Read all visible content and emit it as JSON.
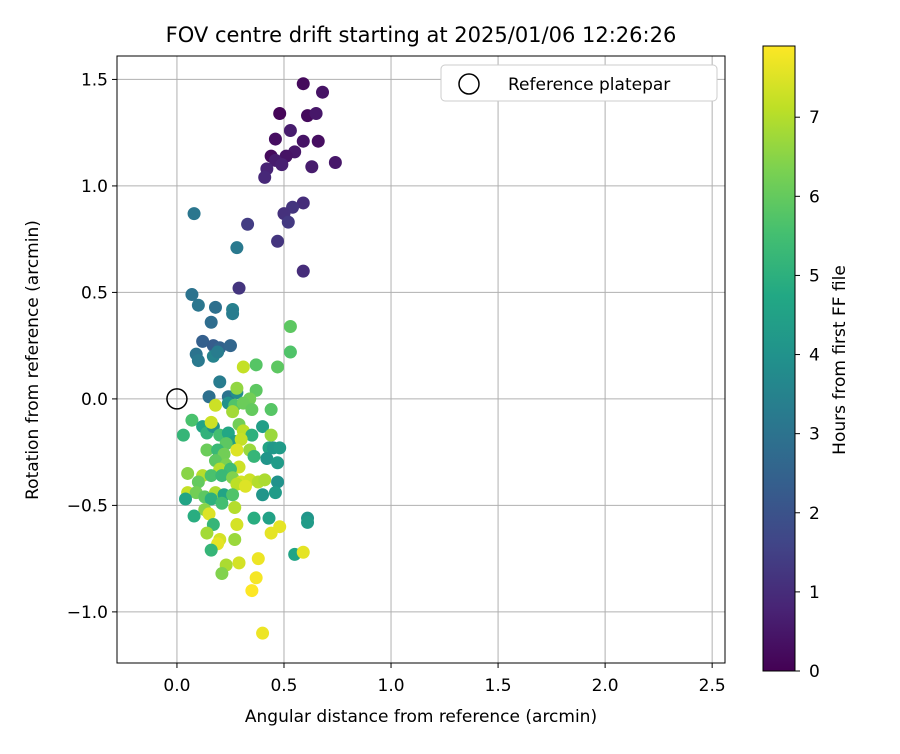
{
  "chart_data": {
    "type": "scatter",
    "title": "FOV centre drift starting at 2025/01/06 12:26:26",
    "xlabel": "Angular distance from reference (arcmin)",
    "ylabel": "Rotation from reference (arcmin)",
    "xlim": [
      -0.28,
      2.56
    ],
    "ylim": [
      -1.24,
      1.61
    ],
    "xticks": [
      0.0,
      0.5,
      1.0,
      1.5,
      2.0,
      2.5
    ],
    "xtick_labels": [
      "0.0",
      "0.5",
      "1.0",
      "1.5",
      "2.0",
      "2.5"
    ],
    "yticks": [
      -1.0,
      -0.5,
      0.0,
      0.5,
      1.0,
      1.5
    ],
    "ytick_labels": [
      "−1.0",
      "−0.5",
      "0.0",
      "0.5",
      "1.0",
      "1.5"
    ],
    "grid": true,
    "legend": {
      "position": "top-right",
      "entries": [
        "Reference platepar"
      ]
    },
    "reference_point": {
      "x": 0.0,
      "y": 0.0,
      "marker": "open-circle"
    },
    "colorbar": {
      "label": "Hours from first FF file",
      "colormap": "viridis",
      "range": [
        0,
        7.9
      ],
      "ticks": [
        0,
        1,
        2,
        3,
        4,
        5,
        6,
        7
      ],
      "tick_labels": [
        "0",
        "1",
        "2",
        "3",
        "4",
        "5",
        "6",
        "7"
      ]
    },
    "points": [
      {
        "x": 0.59,
        "y": 1.48,
        "h": 0.2
      },
      {
        "x": 0.68,
        "y": 1.44,
        "h": 0.4
      },
      {
        "x": 0.48,
        "y": 1.34,
        "h": 0.1
      },
      {
        "x": 0.61,
        "y": 1.33,
        "h": 0.2
      },
      {
        "x": 0.65,
        "y": 1.34,
        "h": 0.5
      },
      {
        "x": 0.53,
        "y": 1.26,
        "h": 0.6
      },
      {
        "x": 0.46,
        "y": 1.22,
        "h": 0.3
      },
      {
        "x": 0.59,
        "y": 1.21,
        "h": 0.4
      },
      {
        "x": 0.66,
        "y": 1.21,
        "h": 0.3
      },
      {
        "x": 0.55,
        "y": 1.16,
        "h": 0.5
      },
      {
        "x": 0.51,
        "y": 1.14,
        "h": 0.4
      },
      {
        "x": 0.44,
        "y": 1.14,
        "h": 0.2
      },
      {
        "x": 0.46,
        "y": 1.12,
        "h": 0.6
      },
      {
        "x": 0.49,
        "y": 1.1,
        "h": 0.7
      },
      {
        "x": 0.63,
        "y": 1.09,
        "h": 0.6
      },
      {
        "x": 0.74,
        "y": 1.11,
        "h": 0.5
      },
      {
        "x": 0.42,
        "y": 1.08,
        "h": 0.8
      },
      {
        "x": 0.41,
        "y": 1.04,
        "h": 0.9
      },
      {
        "x": 0.59,
        "y": 0.92,
        "h": 1.0
      },
      {
        "x": 0.54,
        "y": 0.9,
        "h": 1.2
      },
      {
        "x": 0.5,
        "y": 0.87,
        "h": 1.1
      },
      {
        "x": 0.52,
        "y": 0.83,
        "h": 1.3
      },
      {
        "x": 0.33,
        "y": 0.82,
        "h": 1.4
      },
      {
        "x": 0.47,
        "y": 0.74,
        "h": 1.2
      },
      {
        "x": 0.59,
        "y": 0.6,
        "h": 1.0
      },
      {
        "x": 0.29,
        "y": 0.52,
        "h": 1.2
      },
      {
        "x": 0.08,
        "y": 0.87,
        "h": 3.1
      },
      {
        "x": 0.28,
        "y": 0.71,
        "h": 3.2
      },
      {
        "x": 0.07,
        "y": 0.49,
        "h": 3.0
      },
      {
        "x": 0.1,
        "y": 0.44,
        "h": 3.1
      },
      {
        "x": 0.18,
        "y": 0.43,
        "h": 2.9
      },
      {
        "x": 0.26,
        "y": 0.42,
        "h": 3.4
      },
      {
        "x": 0.26,
        "y": 0.4,
        "h": 3.3
      },
      {
        "x": 0.16,
        "y": 0.36,
        "h": 2.8
      },
      {
        "x": 0.12,
        "y": 0.27,
        "h": 2.4
      },
      {
        "x": 0.17,
        "y": 0.25,
        "h": 2.3
      },
      {
        "x": 0.2,
        "y": 0.24,
        "h": 2.5
      },
      {
        "x": 0.25,
        "y": 0.25,
        "h": 2.6
      },
      {
        "x": 0.09,
        "y": 0.21,
        "h": 3.0
      },
      {
        "x": 0.1,
        "y": 0.18,
        "h": 3.2
      },
      {
        "x": 0.17,
        "y": 0.2,
        "h": 3.5
      },
      {
        "x": 0.19,
        "y": 0.22,
        "h": 3.3
      },
      {
        "x": 0.2,
        "y": 0.08,
        "h": 3.3
      },
      {
        "x": 0.15,
        "y": 0.01,
        "h": 2.9
      },
      {
        "x": 0.24,
        "y": 0.01,
        "h": 3.0
      },
      {
        "x": 0.28,
        "y": 0.03,
        "h": 3.8
      },
      {
        "x": 0.24,
        "y": -0.02,
        "h": 4.0
      },
      {
        "x": 0.31,
        "y": 0.15,
        "h": 7.2
      },
      {
        "x": 0.37,
        "y": 0.16,
        "h": 5.8
      },
      {
        "x": 0.47,
        "y": 0.15,
        "h": 5.9
      },
      {
        "x": 0.53,
        "y": 0.22,
        "h": 5.7
      },
      {
        "x": 0.53,
        "y": 0.34,
        "h": 5.9
      },
      {
        "x": 0.37,
        "y": 0.04,
        "h": 5.9
      },
      {
        "x": 0.28,
        "y": 0.05,
        "h": 6.6
      },
      {
        "x": 0.34,
        "y": 0.0,
        "h": 6.2
      },
      {
        "x": 0.27,
        "y": -0.03,
        "h": 5.7
      },
      {
        "x": 0.31,
        "y": -0.02,
        "h": 6.1
      },
      {
        "x": 0.35,
        "y": -0.05,
        "h": 6.0
      },
      {
        "x": 0.44,
        "y": -0.05,
        "h": 5.8
      },
      {
        "x": 0.18,
        "y": -0.03,
        "h": 7.3
      },
      {
        "x": 0.26,
        "y": -0.06,
        "h": 6.8
      },
      {
        "x": 0.07,
        "y": -0.1,
        "h": 5.6
      },
      {
        "x": 0.12,
        "y": -0.13,
        "h": 4.6
      },
      {
        "x": 0.03,
        "y": -0.17,
        "h": 5.2
      },
      {
        "x": 0.14,
        "y": -0.16,
        "h": 5.1
      },
      {
        "x": 0.17,
        "y": -0.13,
        "h": 4.0
      },
      {
        "x": 0.16,
        "y": -0.11,
        "h": 7.3
      },
      {
        "x": 0.2,
        "y": -0.17,
        "h": 5.5
      },
      {
        "x": 0.24,
        "y": -0.16,
        "h": 4.7
      },
      {
        "x": 0.29,
        "y": -0.12,
        "h": 6.2
      },
      {
        "x": 0.31,
        "y": -0.15,
        "h": 7.1
      },
      {
        "x": 0.35,
        "y": -0.17,
        "h": 5.0
      },
      {
        "x": 0.4,
        "y": -0.13,
        "h": 4.4
      },
      {
        "x": 0.44,
        "y": -0.17,
        "h": 6.7
      },
      {
        "x": 0.27,
        "y": -0.2,
        "h": 4.4
      },
      {
        "x": 0.3,
        "y": -0.19,
        "h": 7.2
      },
      {
        "x": 0.23,
        "y": -0.21,
        "h": 5.9
      },
      {
        "x": 0.14,
        "y": -0.24,
        "h": 6.1
      },
      {
        "x": 0.19,
        "y": -0.24,
        "h": 5.3
      },
      {
        "x": 0.22,
        "y": -0.26,
        "h": 6.2
      },
      {
        "x": 0.28,
        "y": -0.24,
        "h": 7.5
      },
      {
        "x": 0.34,
        "y": -0.24,
        "h": 6.7
      },
      {
        "x": 0.36,
        "y": -0.27,
        "h": 5.2
      },
      {
        "x": 0.43,
        "y": -0.23,
        "h": 4.6
      },
      {
        "x": 0.45,
        "y": -0.23,
        "h": 4.2
      },
      {
        "x": 0.48,
        "y": -0.23,
        "h": 4.3
      },
      {
        "x": 0.42,
        "y": -0.28,
        "h": 4.1
      },
      {
        "x": 0.47,
        "y": -0.3,
        "h": 4.3
      },
      {
        "x": 0.18,
        "y": -0.29,
        "h": 5.9
      },
      {
        "x": 0.23,
        "y": -0.31,
        "h": 6.3
      },
      {
        "x": 0.29,
        "y": -0.32,
        "h": 7.3
      },
      {
        "x": 0.2,
        "y": -0.33,
        "h": 7.0
      },
      {
        "x": 0.25,
        "y": -0.33,
        "h": 5.4
      },
      {
        "x": 0.05,
        "y": -0.35,
        "h": 6.5
      },
      {
        "x": 0.12,
        "y": -0.36,
        "h": 7.0
      },
      {
        "x": 0.16,
        "y": -0.36,
        "h": 5.6
      },
      {
        "x": 0.21,
        "y": -0.36,
        "h": 5.3
      },
      {
        "x": 0.26,
        "y": -0.37,
        "h": 6.4
      },
      {
        "x": 0.3,
        "y": -0.39,
        "h": 7.4
      },
      {
        "x": 0.34,
        "y": -0.38,
        "h": 7.3
      },
      {
        "x": 0.38,
        "y": -0.39,
        "h": 7.0
      },
      {
        "x": 0.41,
        "y": -0.38,
        "h": 6.9
      },
      {
        "x": 0.47,
        "y": -0.39,
        "h": 4.0
      },
      {
        "x": 0.1,
        "y": -0.39,
        "h": 6.0
      },
      {
        "x": 0.28,
        "y": -0.4,
        "h": 7.1
      },
      {
        "x": 0.32,
        "y": -0.41,
        "h": 7.5
      },
      {
        "x": 0.05,
        "y": -0.44,
        "h": 7.2
      },
      {
        "x": 0.09,
        "y": -0.44,
        "h": 6.2
      },
      {
        "x": 0.13,
        "y": -0.46,
        "h": 5.9
      },
      {
        "x": 0.18,
        "y": -0.44,
        "h": 6.9
      },
      {
        "x": 0.22,
        "y": -0.45,
        "h": 4.6
      },
      {
        "x": 0.26,
        "y": -0.45,
        "h": 5.7
      },
      {
        "x": 0.4,
        "y": -0.45,
        "h": 4.1
      },
      {
        "x": 0.46,
        "y": -0.44,
        "h": 4.3
      },
      {
        "x": 0.04,
        "y": -0.47,
        "h": 4.6
      },
      {
        "x": 0.16,
        "y": -0.47,
        "h": 5.0
      },
      {
        "x": 0.21,
        "y": -0.49,
        "h": 5.5
      },
      {
        "x": 0.13,
        "y": -0.52,
        "h": 6.5
      },
      {
        "x": 0.27,
        "y": -0.51,
        "h": 7.0
      },
      {
        "x": 0.08,
        "y": -0.55,
        "h": 4.9
      },
      {
        "x": 0.15,
        "y": -0.54,
        "h": 7.5
      },
      {
        "x": 0.17,
        "y": -0.59,
        "h": 5.2
      },
      {
        "x": 0.36,
        "y": -0.56,
        "h": 4.9
      },
      {
        "x": 0.43,
        "y": -0.56,
        "h": 4.5
      },
      {
        "x": 0.28,
        "y": -0.59,
        "h": 7.4
      },
      {
        "x": 0.48,
        "y": -0.6,
        "h": 7.6
      },
      {
        "x": 0.61,
        "y": -0.56,
        "h": 4.1
      },
      {
        "x": 0.61,
        "y": -0.58,
        "h": 4.3
      },
      {
        "x": 0.14,
        "y": -0.63,
        "h": 6.8
      },
      {
        "x": 0.44,
        "y": -0.63,
        "h": 7.6
      },
      {
        "x": 0.2,
        "y": -0.66,
        "h": 7.4
      },
      {
        "x": 0.27,
        "y": -0.66,
        "h": 6.7
      },
      {
        "x": 0.19,
        "y": -0.68,
        "h": 7.6
      },
      {
        "x": 0.16,
        "y": -0.71,
        "h": 5.2
      },
      {
        "x": 0.55,
        "y": -0.73,
        "h": 4.6
      },
      {
        "x": 0.59,
        "y": -0.72,
        "h": 7.6
      },
      {
        "x": 0.38,
        "y": -0.75,
        "h": 7.7
      },
      {
        "x": 0.23,
        "y": -0.78,
        "h": 6.9
      },
      {
        "x": 0.29,
        "y": -0.77,
        "h": 7.4
      },
      {
        "x": 0.21,
        "y": -0.82,
        "h": 6.4
      },
      {
        "x": 0.37,
        "y": -0.84,
        "h": 7.8
      },
      {
        "x": 0.35,
        "y": -0.9,
        "h": 7.9
      },
      {
        "x": 0.4,
        "y": -1.1,
        "h": 7.7
      }
    ]
  }
}
